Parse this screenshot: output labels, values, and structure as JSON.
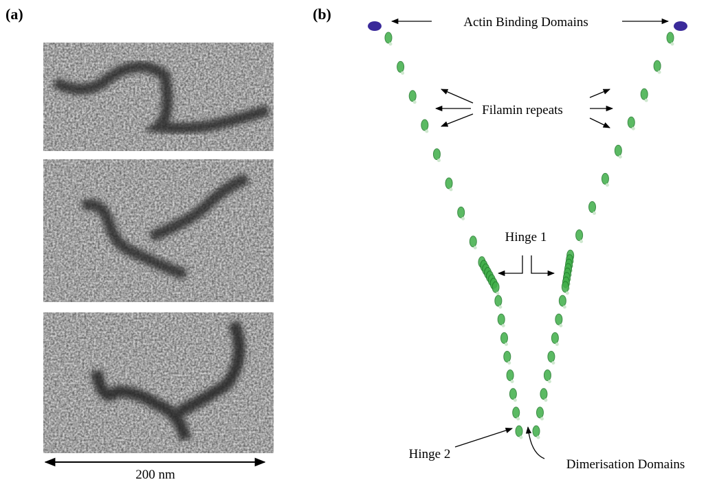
{
  "panel_a": {
    "label": "(a)",
    "scale_bar": "200 nm"
  },
  "panel_b": {
    "label": "(b)",
    "annotations": {
      "actin": "Actin Binding Domains",
      "repeats": "Filamin repeats",
      "hinge1": "Hinge 1",
      "hinge2": "Hinge 2",
      "dimer": "Dimerisation Domains"
    }
  }
}
